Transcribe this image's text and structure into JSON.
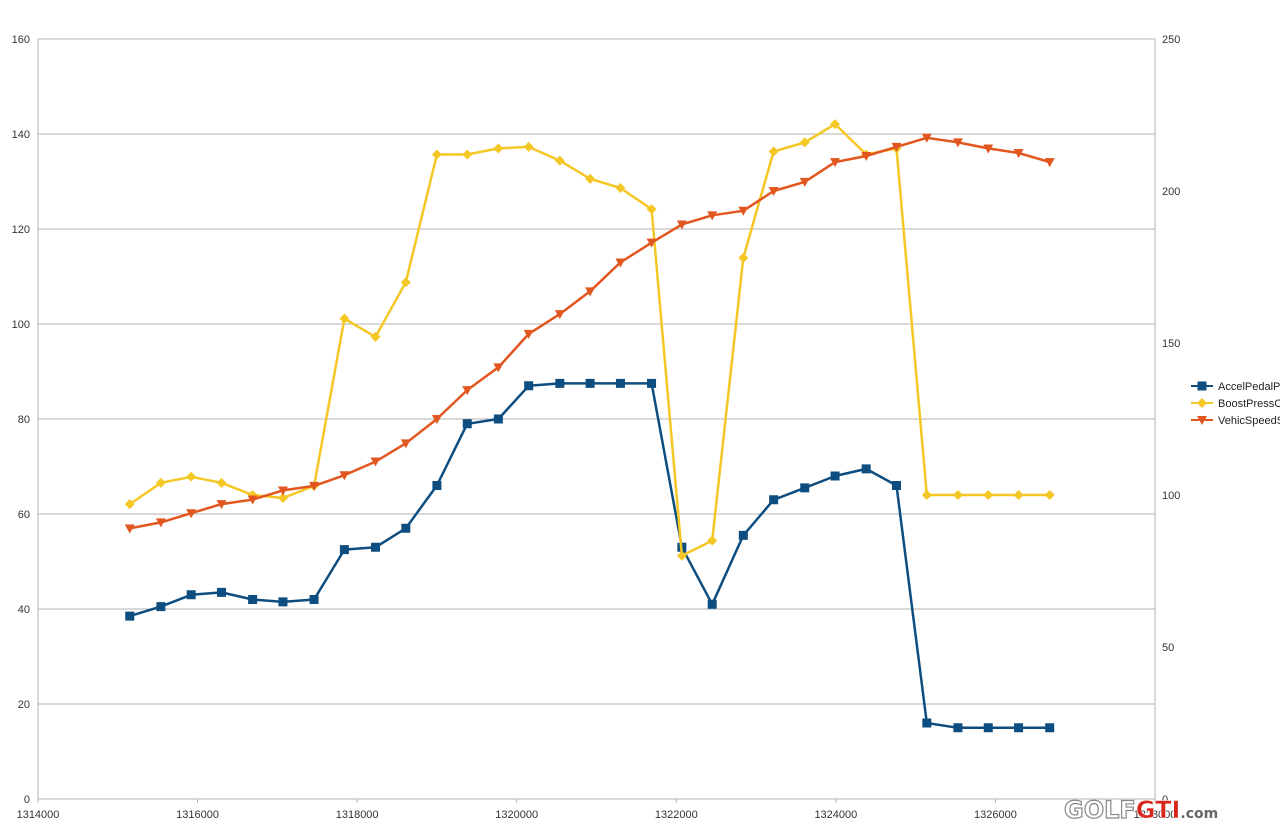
{
  "chart_data": {
    "type": "line",
    "title": "",
    "xlabel": "",
    "ylabel": "",
    "x": [
      1315150,
      1315540,
      1315920,
      1316300,
      1316690,
      1317070,
      1317460,
      1317840,
      1318230,
      1318610,
      1319000,
      1319380,
      1319770,
      1320150,
      1320540,
      1320920,
      1321300,
      1321690,
      1322070,
      1322450,
      1322840,
      1323220,
      1323610,
      1323990,
      1324380,
      1324760,
      1325140,
      1325530,
      1325910,
      1326290,
      1326680
    ],
    "xlim": [
      1314000,
      1328000
    ],
    "xticks": [
      "1314000",
      "1316000",
      "1318000",
      "1320000",
      "1322000",
      "1324000",
      "1326000",
      "1328000"
    ],
    "ylim_left": [
      0,
      160
    ],
    "yticks_left": [
      "0",
      "20",
      "40",
      "60",
      "80",
      "100",
      "120",
      "140",
      "160"
    ],
    "ylim_right": [
      0,
      250
    ],
    "yticks_right": [
      "0",
      "50",
      "100",
      "150",
      "200",
      "250"
    ],
    "grid": true,
    "legend_position": "right",
    "series": [
      {
        "name": "AccelPedalP",
        "axis": "left",
        "color": "#0e4d7f",
        "marker": "square",
        "values": [
          38.5,
          40.5,
          43,
          43.5,
          42,
          41.5,
          42,
          52.5,
          53,
          57,
          66,
          79,
          80,
          87,
          87.5,
          87.5,
          87.5,
          87.5,
          53,
          41,
          55.5,
          63,
          65.5,
          68,
          69.5,
          66,
          16,
          15,
          15,
          15,
          15
        ]
      },
      {
        "name": "BoostPressC",
        "axis": "right",
        "color": "#f5c724",
        "marker": "diamond",
        "values": [
          97,
          104,
          106,
          104,
          100,
          99,
          103,
          158,
          152,
          170,
          212,
          212,
          214,
          214.5,
          210,
          204,
          201,
          194,
          80,
          85,
          178,
          213,
          216,
          222,
          212,
          214,
          100,
          100,
          100,
          100,
          100
        ]
      },
      {
        "name": "VehicSpeedS",
        "axis": "right",
        "color": "#e2561f",
        "marker": "triangle-down",
        "values": [
          89,
          91,
          94,
          97,
          98.5,
          101.5,
          103,
          106.5,
          111,
          117,
          125,
          134.5,
          142,
          153,
          159.5,
          167,
          176.5,
          183,
          189,
          192,
          193.5,
          200,
          203,
          209.5,
          211.5,
          214.5,
          217.5,
          216,
          214,
          212.5,
          209.5
        ]
      }
    ]
  },
  "watermark": {
    "part1": "GOLF",
    "part2": "GTI",
    "part3": ".com"
  }
}
